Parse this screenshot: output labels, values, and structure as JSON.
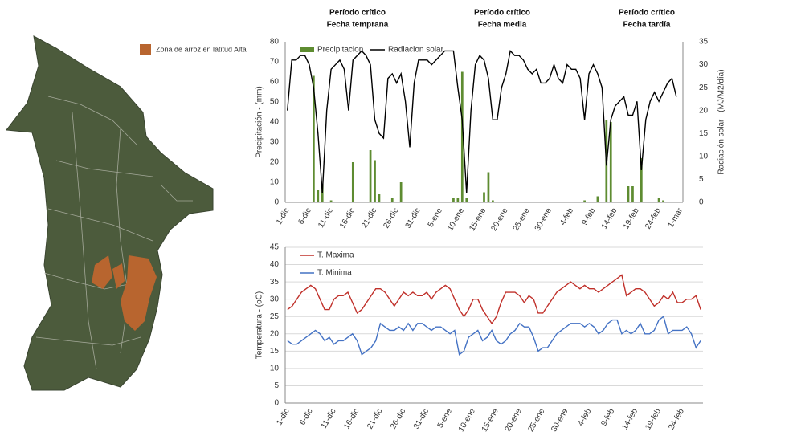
{
  "map": {
    "legend": "Zona de arroz en latitud Alta"
  },
  "chart_data": [
    {
      "type": "combo",
      "annotations": [
        [
          "Período crítico",
          "Fecha temprana"
        ],
        [
          "Período crítico",
          "Fecha media"
        ],
        [
          "Período crítico",
          "Fecha tardía"
        ]
      ],
      "y_label": "Precipitación - (mm)",
      "y2_label": "Radiación solar - (MJ/M2/día)",
      "legend": "top-left",
      "categories": [
        "1-dic",
        null,
        null,
        null,
        null,
        "6-dic",
        null,
        null,
        null,
        null,
        "11-dic",
        null,
        null,
        null,
        null,
        "16-dic",
        null,
        null,
        null,
        null,
        "21-dic",
        null,
        null,
        null,
        null,
        "26-dic",
        null,
        null,
        null,
        null,
        "31-dic",
        null,
        null,
        null,
        null,
        "5-ene",
        null,
        null,
        null,
        null,
        "10-ene",
        null,
        null,
        null,
        null,
        "15-ene",
        null,
        null,
        null,
        null,
        "20-ene",
        null,
        null,
        null,
        null,
        "25-ene",
        null,
        null,
        null,
        null,
        "30-ene",
        null,
        null,
        null,
        null,
        "4-feb",
        null,
        null,
        null,
        null,
        "9-feb",
        null,
        null,
        null,
        null,
        "14-feb",
        null,
        null,
        null,
        null,
        "19-feb",
        null,
        null,
        null,
        null,
        "24-feb",
        null,
        null,
        null,
        null,
        "1-mar"
      ],
      "series": [
        {
          "name": "Precipitacion",
          "kind": "bar",
          "color": "#5e8c31",
          "values": [
            0,
            0,
            0,
            0,
            0,
            0,
            63,
            6,
            9,
            0,
            1,
            0,
            0,
            0,
            0,
            20,
            0,
            0,
            0,
            26,
            21,
            4,
            0,
            0,
            2,
            0,
            10,
            0,
            0,
            0,
            0,
            0,
            0,
            0,
            0,
            0,
            0,
            0,
            2,
            2,
            65,
            2,
            0,
            0,
            0,
            5,
            15,
            1,
            0,
            0,
            0,
            0,
            0,
            0,
            0,
            0,
            0,
            0,
            0,
            0,
            0,
            0,
            0,
            0,
            0,
            0,
            0,
            0,
            1,
            0,
            0,
            3,
            0,
            41,
            40,
            0,
            0,
            0,
            8,
            8,
            0,
            22,
            0,
            0,
            0,
            2,
            1,
            0,
            0,
            0,
            0
          ]
        },
        {
          "name": "Radiacion solar",
          "kind": "line",
          "axis": "y2",
          "color": "#000000",
          "values": [
            20,
            31,
            31,
            32,
            32,
            30,
            25,
            15,
            2,
            20,
            29,
            30,
            31,
            29,
            20,
            31,
            32,
            33,
            32,
            30,
            18,
            15,
            14,
            27,
            28,
            26,
            28,
            22,
            12,
            26,
            31,
            31,
            31,
            30,
            31,
            32,
            33,
            33,
            33,
            25,
            18,
            2,
            20,
            30,
            32,
            31,
            27,
            18,
            18,
            25,
            28,
            33,
            32,
            32,
            31,
            29,
            28,
            29,
            26,
            26,
            27,
            30,
            27,
            26,
            30,
            29,
            29,
            27,
            18,
            28,
            30,
            28,
            25,
            8,
            18,
            21,
            22,
            23,
            19,
            19,
            22,
            7,
            18,
            22,
            24,
            22,
            24,
            26,
            27,
            23,
            null
          ]
        }
      ],
      "ylim": [
        0,
        80
      ],
      "yticks": [
        0,
        10,
        20,
        30,
        40,
        50,
        60,
        70,
        80
      ],
      "y2lim": [
        0,
        35
      ],
      "y2ticks": [
        0,
        5,
        10,
        15,
        20,
        25,
        30,
        35
      ],
      "grid": false
    },
    {
      "type": "line",
      "y_label": "Temperatura - (oC)",
      "legend": "top-left",
      "categories": [
        "1-dic",
        null,
        null,
        null,
        null,
        "6-dic",
        null,
        null,
        null,
        null,
        "11-dic",
        null,
        null,
        null,
        null,
        "16-dic",
        null,
        null,
        null,
        null,
        "21-dic",
        null,
        null,
        null,
        null,
        "26-dic",
        null,
        null,
        null,
        null,
        "31-dic",
        null,
        null,
        null,
        null,
        "5-ene",
        null,
        null,
        null,
        null,
        "10-ene",
        null,
        null,
        null,
        null,
        "15-ene",
        null,
        null,
        null,
        null,
        "20-ene",
        null,
        null,
        null,
        null,
        "25-ene",
        null,
        null,
        null,
        null,
        "30-ene",
        null,
        null,
        null,
        null,
        "4-feb",
        null,
        null,
        null,
        null,
        "9-feb",
        null,
        null,
        null,
        null,
        "14-feb",
        null,
        null,
        null,
        null,
        "19-feb",
        null,
        null,
        null,
        null,
        "24-feb",
        null,
        null,
        null,
        null
      ],
      "series": [
        {
          "name": "T. Maxima",
          "color": "#c0302a",
          "values": [
            27,
            28,
            30,
            32,
            33,
            34,
            33,
            30,
            27,
            27,
            30,
            31,
            31,
            32,
            29,
            26,
            27,
            29,
            31,
            33,
            33,
            32,
            30,
            28,
            30,
            32,
            31,
            32,
            31,
            31,
            32,
            30,
            32,
            33,
            34,
            33,
            30,
            27,
            25,
            27,
            30,
            30,
            27,
            25,
            23,
            25,
            29,
            32,
            32,
            32,
            31,
            29,
            31,
            30,
            26,
            26,
            28,
            30,
            32,
            33,
            34,
            35,
            34,
            33,
            34,
            33,
            33,
            32,
            33,
            34,
            35,
            36,
            37,
            31,
            32,
            33,
            33,
            32,
            30,
            28,
            29,
            31,
            30,
            32,
            29,
            29,
            30,
            30,
            31,
            27
          ]
        },
        {
          "name": "T. Minima",
          "color": "#4472c4",
          "values": [
            18,
            17,
            17,
            18,
            19,
            20,
            21,
            20,
            18,
            19,
            17,
            18,
            18,
            19,
            20,
            18,
            14,
            15,
            16,
            18,
            23,
            22,
            21,
            21,
            22,
            21,
            23,
            21,
            23,
            23,
            22,
            21,
            22,
            22,
            21,
            20,
            21,
            14,
            15,
            19,
            20,
            21,
            18,
            19,
            21,
            18,
            17,
            18,
            20,
            21,
            23,
            22,
            22,
            19,
            15,
            16,
            16,
            18,
            20,
            21,
            22,
            23,
            23,
            23,
            22,
            23,
            22,
            20,
            21,
            23,
            24,
            24,
            20,
            21,
            20,
            21,
            23,
            20,
            20,
            21,
            24,
            25,
            20,
            21,
            21,
            21,
            22,
            20,
            16,
            18
          ]
        }
      ],
      "ylim": [
        0,
        45
      ],
      "yticks": [
        0,
        5,
        10,
        15,
        20,
        25,
        30,
        35,
        40,
        45
      ],
      "grid": true
    }
  ]
}
